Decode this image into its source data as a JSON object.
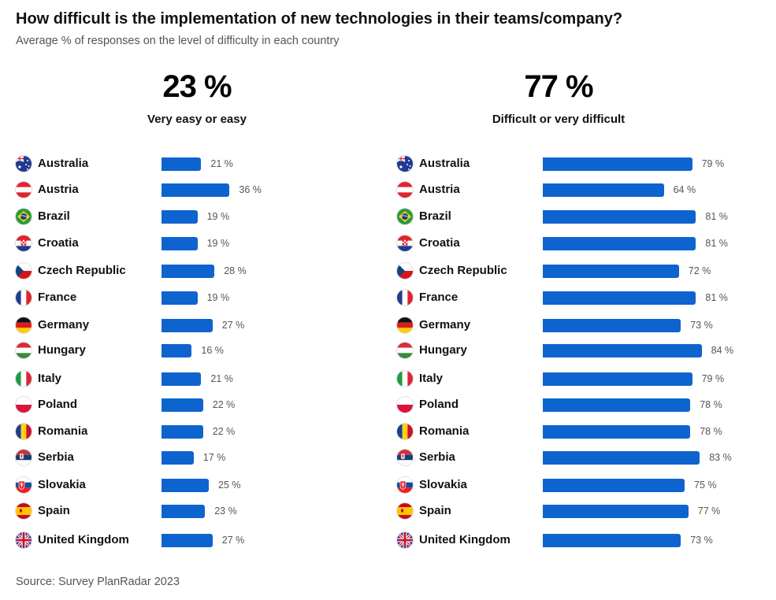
{
  "title": "How difficult is the implementation of new technologies in their teams/company?",
  "subtitle": "Average % of responses on the level of difficulty in each country",
  "source": "Source: Survey PlanRadar 2023",
  "chart_data": {
    "type": "bar",
    "orientation": "horizontal",
    "title": "How difficult is the implementation of new technologies in their teams/company?",
    "subtitle": "Average % of responses on the level of difficulty in each country",
    "categories": [
      "Australia",
      "Austria",
      "Brazil",
      "Croatia",
      "Czech Republic",
      "France",
      "Germany",
      "Hungary",
      "Italy",
      "Poland",
      "Romania",
      "Serbia",
      "Slovakia",
      "Spain",
      "United Kingdom"
    ],
    "value_suffix": " %",
    "series": [
      {
        "name": "Very easy or easy",
        "total": "23 %",
        "values": [
          21,
          36,
          19,
          19,
          28,
          19,
          27,
          16,
          21,
          22,
          22,
          17,
          25,
          23,
          27
        ]
      },
      {
        "name": "Difficult or very difficult",
        "total": "77 %",
        "values": [
          79,
          64,
          81,
          81,
          72,
          81,
          73,
          84,
          79,
          78,
          78,
          83,
          75,
          77,
          73
        ]
      }
    ],
    "bar_color": "#0d64cf"
  },
  "flags": {
    "Australia": "australia-flag-icon",
    "Austria": "austria-flag-icon",
    "Brazil": "brazil-flag-icon",
    "Croatia": "croatia-flag-icon",
    "Czech Republic": "czech-republic-flag-icon",
    "France": "france-flag-icon",
    "Germany": "germany-flag-icon",
    "Hungary": "hungary-flag-icon",
    "Italy": "italy-flag-icon",
    "Poland": "poland-flag-icon",
    "Romania": "romania-flag-icon",
    "Serbia": "serbia-flag-icon",
    "Slovakia": "slovakia-flag-icon",
    "Spain": "spain-flag-icon",
    "United Kingdom": "united-kingdom-flag-icon"
  }
}
